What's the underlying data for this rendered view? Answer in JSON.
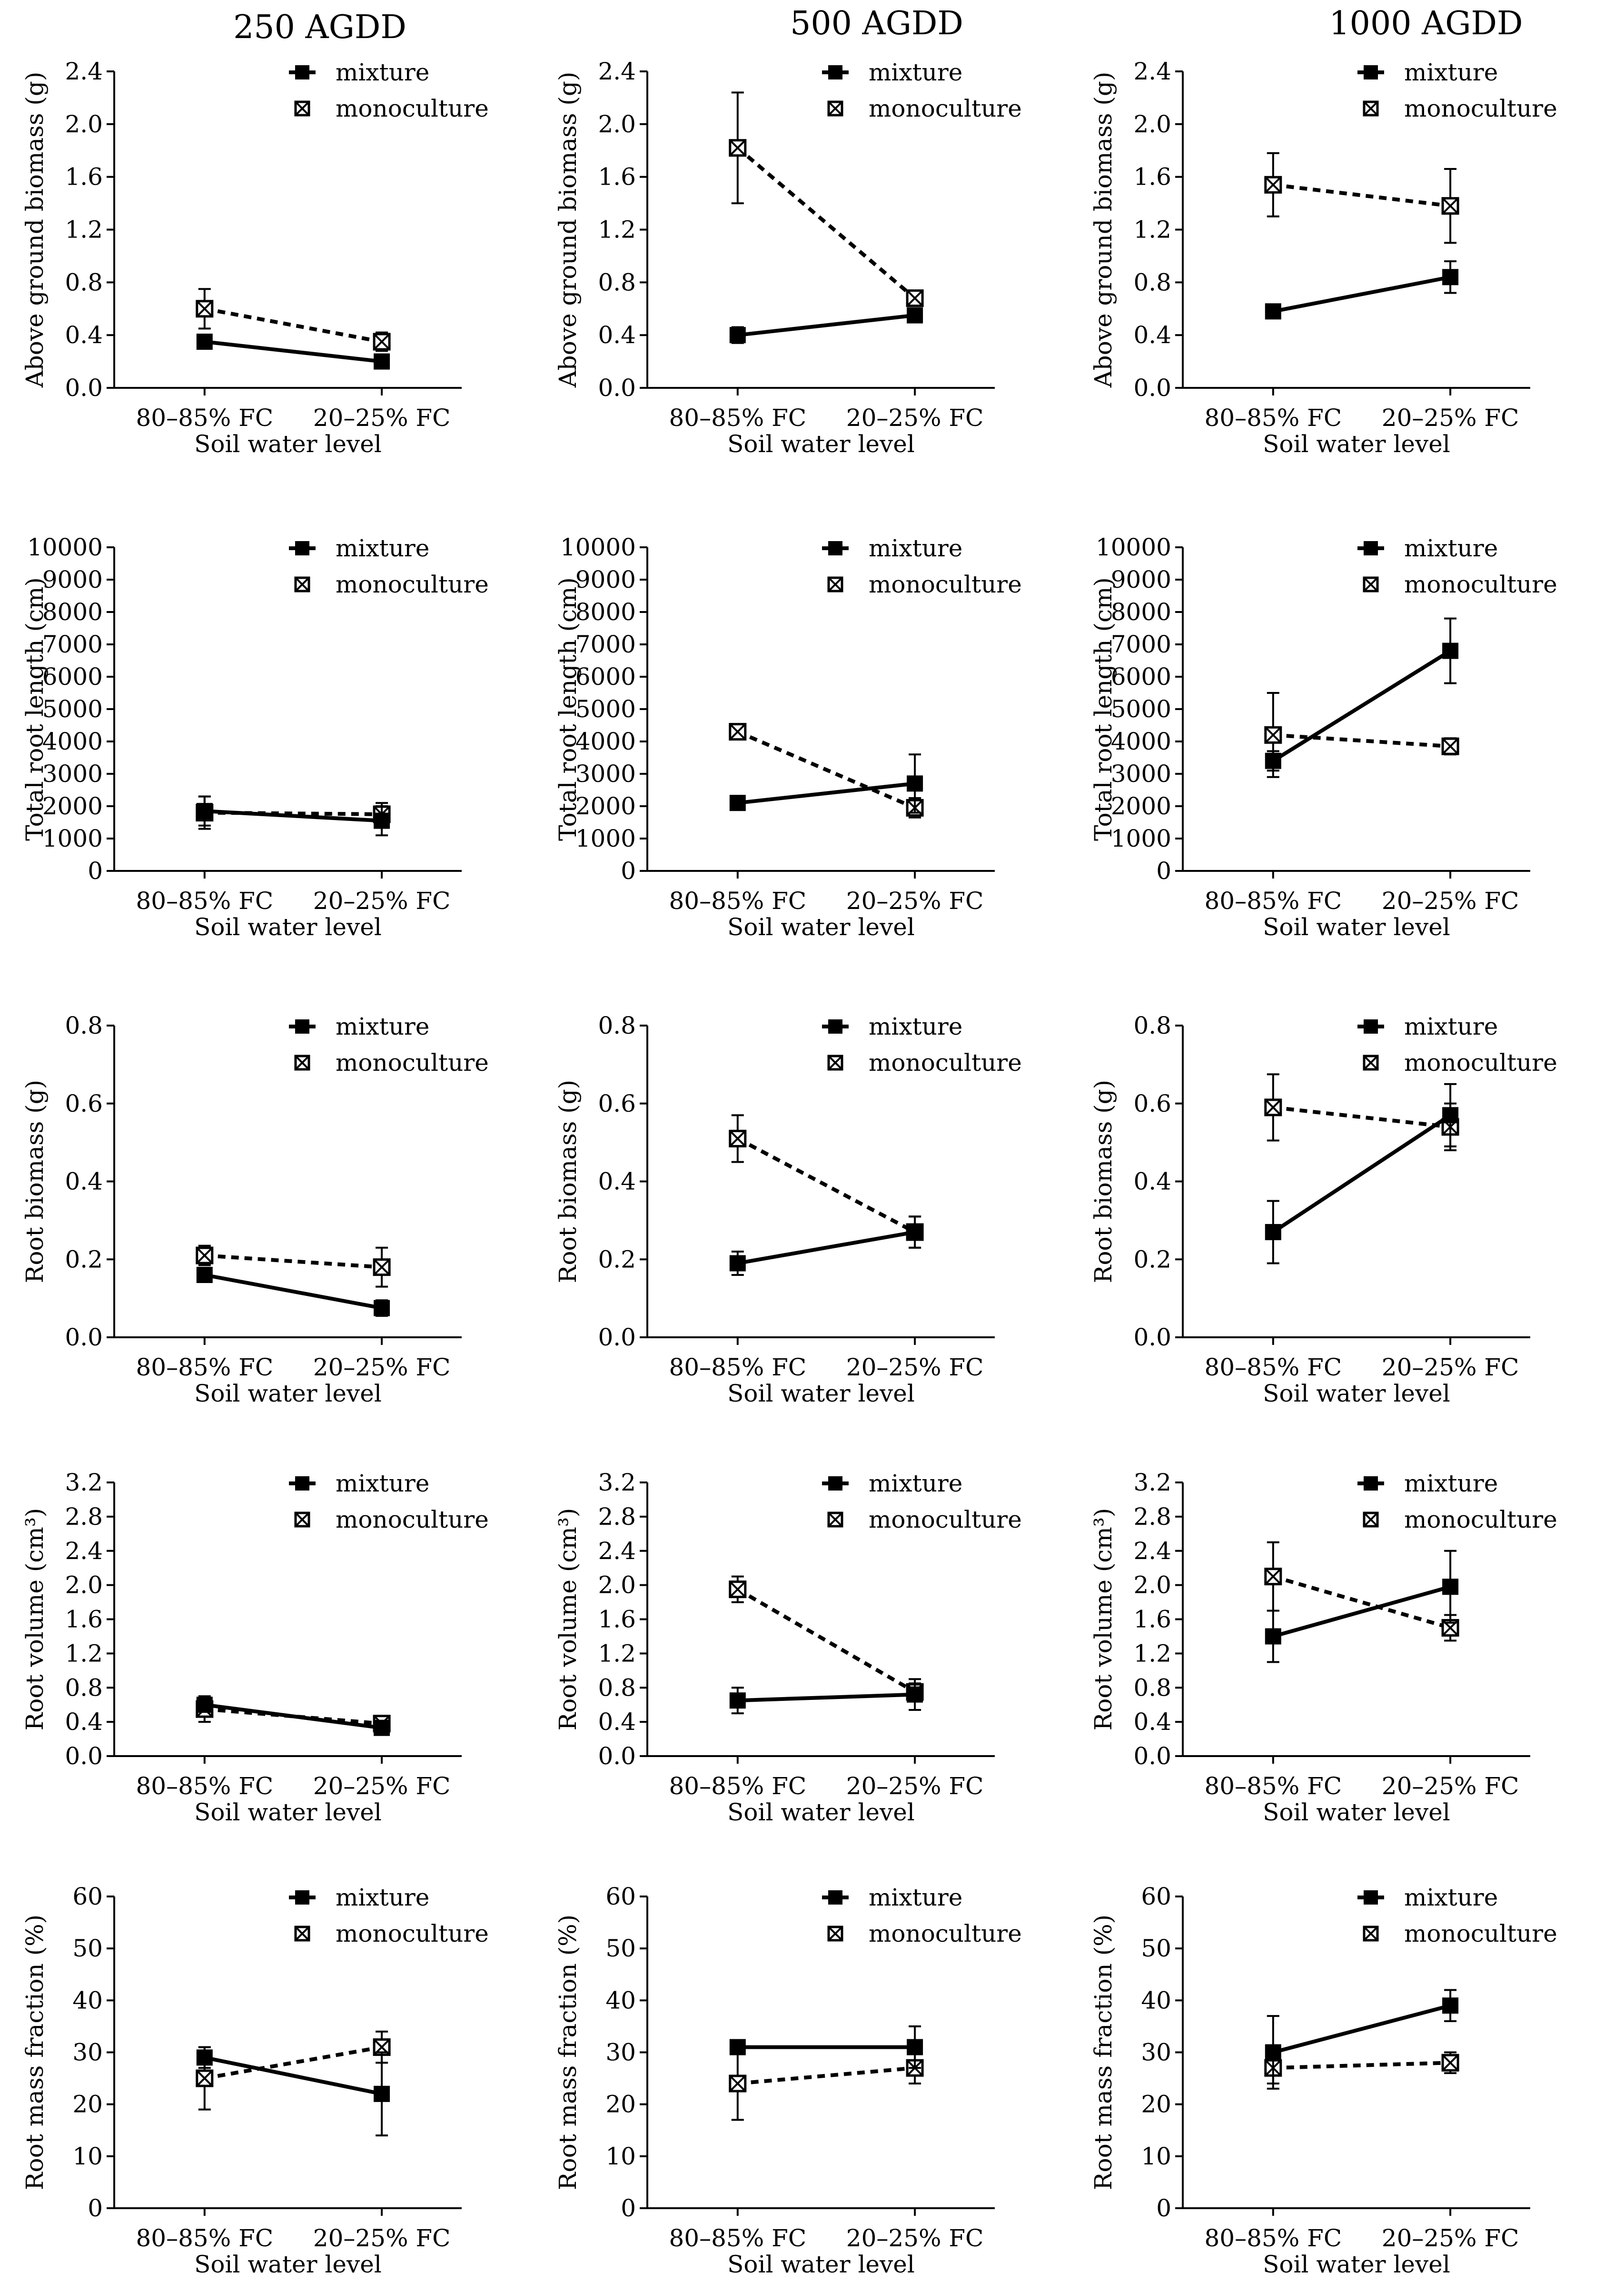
{
  "figure": {
    "column_titles": [
      "250 AGDD",
      "500 AGDD",
      "1000 AGDD"
    ]
  },
  "legend": {
    "series": [
      "mixture",
      "monoculture"
    ]
  },
  "chart_data": [
    {
      "type": "line",
      "id": "agb-250",
      "title": "250 AGDD",
      "ylabel": "Above ground biomass (g)",
      "xlabel": "Soil water level",
      "categories": [
        "80–85% FC",
        "20–25% FC"
      ],
      "ylim": [
        0,
        2.4
      ],
      "yticks": [
        0,
        0.4,
        0.8,
        1.2,
        1.6,
        2.0,
        2.4
      ],
      "ytick_labels": [
        "0.0",
        "0.4",
        "0.8",
        "1.2",
        "1.6",
        "2.0",
        "2.4"
      ],
      "series": [
        {
          "name": "mixture",
          "values": [
            0.35,
            0.2
          ],
          "err": [
            0.05,
            0.05
          ]
        },
        {
          "name": "monoculture",
          "values": [
            0.6,
            0.35
          ],
          "err": [
            0.15,
            0.07
          ]
        }
      ]
    },
    {
      "type": "line",
      "id": "agb-500",
      "title": "500 AGDD",
      "ylabel": "Above ground biomass (g)",
      "xlabel": "Soil water level",
      "categories": [
        "80–85% FC",
        "20–25% FC"
      ],
      "ylim": [
        0,
        2.4
      ],
      "yticks": [
        0,
        0.4,
        0.8,
        1.2,
        1.6,
        2.0,
        2.4
      ],
      "ytick_labels": [
        "0.0",
        "0.4",
        "0.8",
        "1.2",
        "1.6",
        "2.0",
        "2.4"
      ],
      "series": [
        {
          "name": "mixture",
          "values": [
            0.4,
            0.55
          ],
          "err": [
            0.06,
            0.04
          ]
        },
        {
          "name": "monoculture",
          "values": [
            1.82,
            0.68
          ],
          "err": [
            0.42,
            0.05
          ]
        }
      ]
    },
    {
      "type": "line",
      "id": "agb-1000",
      "title": "1000 AGDD",
      "ylabel": "Above ground biomass (g)",
      "xlabel": "Soil water level",
      "categories": [
        "80–85% FC",
        "20–25% FC"
      ],
      "ylim": [
        0,
        2.4
      ],
      "yticks": [
        0,
        0.4,
        0.8,
        1.2,
        1.6,
        2.0,
        2.4
      ],
      "ytick_labels": [
        "0.0",
        "0.4",
        "0.8",
        "1.2",
        "1.6",
        "2.0",
        "2.4"
      ],
      "series": [
        {
          "name": "mixture",
          "values": [
            0.58,
            0.84
          ],
          "err": [
            0.03,
            0.12
          ]
        },
        {
          "name": "monoculture",
          "values": [
            1.54,
            1.38
          ],
          "err": [
            0.24,
            0.28
          ]
        }
      ]
    },
    {
      "type": "line",
      "id": "trl-250",
      "ylabel": "Total root length (cm)",
      "xlabel": "Soil water level",
      "categories": [
        "80–85% FC",
        "20–25% FC"
      ],
      "ylim": [
        0,
        10000
      ],
      "yticks": [
        0,
        1000,
        2000,
        3000,
        4000,
        5000,
        6000,
        7000,
        8000,
        9000,
        10000
      ],
      "ytick_labels": [
        "0",
        "1000",
        "2000",
        "3000",
        "4000",
        "5000",
        "6000",
        "7000",
        "8000",
        "9000",
        "10000"
      ],
      "series": [
        {
          "name": "mixture",
          "values": [
            1850,
            1550
          ],
          "err": [
            450,
            450
          ]
        },
        {
          "name": "monoculture",
          "values": [
            1800,
            1750
          ],
          "err": [
            500,
            350
          ]
        }
      ]
    },
    {
      "type": "line",
      "id": "trl-500",
      "ylabel": "Total root length (cm)",
      "xlabel": "Soil water level",
      "categories": [
        "80–85% FC",
        "20–25% FC"
      ],
      "ylim": [
        0,
        10000
      ],
      "yticks": [
        0,
        1000,
        2000,
        3000,
        4000,
        5000,
        6000,
        7000,
        8000,
        9000,
        10000
      ],
      "ytick_labels": [
        "0",
        "1000",
        "2000",
        "3000",
        "4000",
        "5000",
        "6000",
        "7000",
        "8000",
        "9000",
        "10000"
      ],
      "series": [
        {
          "name": "mixture",
          "values": [
            2100,
            2700
          ],
          "err": [
            100,
            900
          ]
        },
        {
          "name": "monoculture",
          "values": [
            4300,
            1950
          ],
          "err": [
            150,
            300
          ]
        }
      ]
    },
    {
      "type": "line",
      "id": "trl-1000",
      "ylabel": "Total root length (cm)",
      "xlabel": "Soil water level",
      "categories": [
        "80–85% FC",
        "20–25% FC"
      ],
      "ylim": [
        0,
        10000
      ],
      "yticks": [
        0,
        1000,
        2000,
        3000,
        4000,
        5000,
        6000,
        7000,
        8000,
        9000,
        10000
      ],
      "ytick_labels": [
        "0",
        "1000",
        "2000",
        "3000",
        "4000",
        "5000",
        "6000",
        "7000",
        "8000",
        "9000",
        "10000"
      ],
      "series": [
        {
          "name": "mixture",
          "values": [
            3400,
            6800
          ],
          "err": [
            300,
            1000
          ]
        },
        {
          "name": "monoculture",
          "values": [
            4200,
            3850
          ],
          "err": [
            1300,
            250
          ]
        }
      ]
    },
    {
      "type": "line",
      "id": "rb-250",
      "ylabel": "Root biomass (g)",
      "xlabel": "Soil water level",
      "categories": [
        "80–85% FC",
        "20–25% FC"
      ],
      "ylim": [
        0,
        0.8
      ],
      "yticks": [
        0,
        0.2,
        0.4,
        0.6,
        0.8
      ],
      "ytick_labels": [
        "0.0",
        "0.2",
        "0.4",
        "0.6",
        "0.8"
      ],
      "series": [
        {
          "name": "mixture",
          "values": [
            0.16,
            0.075
          ],
          "err": [
            0.01,
            0.02
          ]
        },
        {
          "name": "monoculture",
          "values": [
            0.21,
            0.18
          ],
          "err": [
            0.025,
            0.05
          ]
        }
      ]
    },
    {
      "type": "line",
      "id": "rb-500",
      "ylabel": "Root biomass (g)",
      "xlabel": "Soil water level",
      "categories": [
        "80–85% FC",
        "20–25% FC"
      ],
      "ylim": [
        0,
        0.8
      ],
      "yticks": [
        0,
        0.2,
        0.4,
        0.6,
        0.8
      ],
      "ytick_labels": [
        "0.0",
        "0.2",
        "0.4",
        "0.6",
        "0.8"
      ],
      "series": [
        {
          "name": "mixture",
          "values": [
            0.19,
            0.27
          ],
          "err": [
            0.03,
            0.04
          ]
        },
        {
          "name": "monoculture",
          "values": [
            0.51,
            0.27
          ],
          "err": [
            0.06,
            0.04
          ]
        }
      ]
    },
    {
      "type": "line",
      "id": "rb-1000",
      "ylabel": "Root biomass (g)",
      "xlabel": "Soil water level",
      "categories": [
        "80–85% FC",
        "20–25% FC"
      ],
      "ylim": [
        0,
        0.8
      ],
      "yticks": [
        0,
        0.2,
        0.4,
        0.6,
        0.8
      ],
      "ytick_labels": [
        "0.0",
        "0.2",
        "0.4",
        "0.6",
        "0.8"
      ],
      "series": [
        {
          "name": "mixture",
          "values": [
            0.27,
            0.57
          ],
          "err": [
            0.08,
            0.08
          ]
        },
        {
          "name": "monoculture",
          "values": [
            0.59,
            0.54
          ],
          "err": [
            0.085,
            0.06
          ]
        }
      ]
    },
    {
      "type": "line",
      "id": "rv-250",
      "ylabel": "Root volume (cm³)",
      "xlabel": "Soil water level",
      "categories": [
        "80–85% FC",
        "20–25% FC"
      ],
      "ylim": [
        0,
        3.2
      ],
      "yticks": [
        0,
        0.4,
        0.8,
        1.2,
        1.6,
        2.0,
        2.4,
        2.8,
        3.2
      ],
      "ytick_labels": [
        "0.0",
        "0.4",
        "0.8",
        "1.2",
        "1.6",
        "2.0",
        "2.4",
        "2.8",
        "3.2"
      ],
      "series": [
        {
          "name": "mixture",
          "values": [
            0.6,
            0.33
          ],
          "err": [
            0.05,
            0.05
          ]
        },
        {
          "name": "monoculture",
          "values": [
            0.55,
            0.38
          ],
          "err": [
            0.15,
            0.05
          ]
        }
      ]
    },
    {
      "type": "line",
      "id": "rv-500",
      "ylabel": "Root volume (cm³)",
      "xlabel": "Soil water level",
      "categories": [
        "80–85% FC",
        "20–25% FC"
      ],
      "ylim": [
        0,
        3.2
      ],
      "yticks": [
        0,
        0.4,
        0.8,
        1.2,
        1.6,
        2.0,
        2.4,
        2.8,
        3.2
      ],
      "ytick_labels": [
        "0.0",
        "0.4",
        "0.8",
        "1.2",
        "1.6",
        "2.0",
        "2.4",
        "2.8",
        "3.2"
      ],
      "series": [
        {
          "name": "mixture",
          "values": [
            0.65,
            0.72
          ],
          "err": [
            0.15,
            0.18
          ]
        },
        {
          "name": "monoculture",
          "values": [
            1.95,
            0.75
          ],
          "err": [
            0.15,
            0.1
          ]
        }
      ]
    },
    {
      "type": "line",
      "id": "rv-1000",
      "ylabel": "Root volume (cm³)",
      "xlabel": "Soil water level",
      "categories": [
        "80–85% FC",
        "20–25% FC"
      ],
      "ylim": [
        0,
        3.2
      ],
      "yticks": [
        0,
        0.4,
        0.8,
        1.2,
        1.6,
        2.0,
        2.4,
        2.8,
        3.2
      ],
      "ytick_labels": [
        "0.0",
        "0.4",
        "0.8",
        "1.2",
        "1.6",
        "2.0",
        "2.4",
        "2.8",
        "3.2"
      ],
      "series": [
        {
          "name": "mixture",
          "values": [
            1.4,
            1.98
          ],
          "err": [
            0.3,
            0.42
          ]
        },
        {
          "name": "monoculture",
          "values": [
            2.1,
            1.5
          ],
          "err": [
            0.4,
            0.15
          ]
        }
      ]
    },
    {
      "type": "line",
      "id": "rmf-250",
      "ylabel": "Root mass fraction (%)",
      "xlabel": "Soil water level",
      "categories": [
        "80–85% FC",
        "20–25% FC"
      ],
      "ylim": [
        0,
        60
      ],
      "yticks": [
        0,
        10,
        20,
        30,
        40,
        50,
        60
      ],
      "ytick_labels": [
        "0",
        "10",
        "20",
        "30",
        "40",
        "50",
        "60"
      ],
      "series": [
        {
          "name": "mixture",
          "values": [
            29,
            22
          ],
          "err": [
            2,
            8
          ]
        },
        {
          "name": "monoculture",
          "values": [
            25,
            31
          ],
          "err": [
            6,
            3
          ]
        }
      ]
    },
    {
      "type": "line",
      "id": "rmf-500",
      "ylabel": "Root mass fraction (%)",
      "xlabel": "Soil water level",
      "categories": [
        "80–85% FC",
        "20–25% FC"
      ],
      "ylim": [
        0,
        60
      ],
      "yticks": [
        0,
        10,
        20,
        30,
        40,
        50,
        60
      ],
      "ytick_labels": [
        "0",
        "10",
        "20",
        "30",
        "40",
        "50",
        "60"
      ],
      "series": [
        {
          "name": "mixture",
          "values": [
            31,
            31
          ],
          "err": [
            1,
            4
          ]
        },
        {
          "name": "monoculture",
          "values": [
            24,
            27
          ],
          "err": [
            7,
            3
          ]
        }
      ]
    },
    {
      "type": "line",
      "id": "rmf-1000",
      "ylabel": "Root mass fraction (%)",
      "xlabel": "Soil water level",
      "categories": [
        "80–85% FC",
        "20–25% FC"
      ],
      "ylim": [
        0,
        60
      ],
      "yticks": [
        0,
        10,
        20,
        30,
        40,
        50,
        60
      ],
      "ytick_labels": [
        "0",
        "10",
        "20",
        "30",
        "40",
        "50",
        "60"
      ],
      "series": [
        {
          "name": "mixture",
          "values": [
            30,
            39
          ],
          "err": [
            7,
            3
          ]
        },
        {
          "name": "monoculture",
          "values": [
            27,
            28
          ],
          "err": [
            3,
            2
          ]
        }
      ]
    }
  ]
}
